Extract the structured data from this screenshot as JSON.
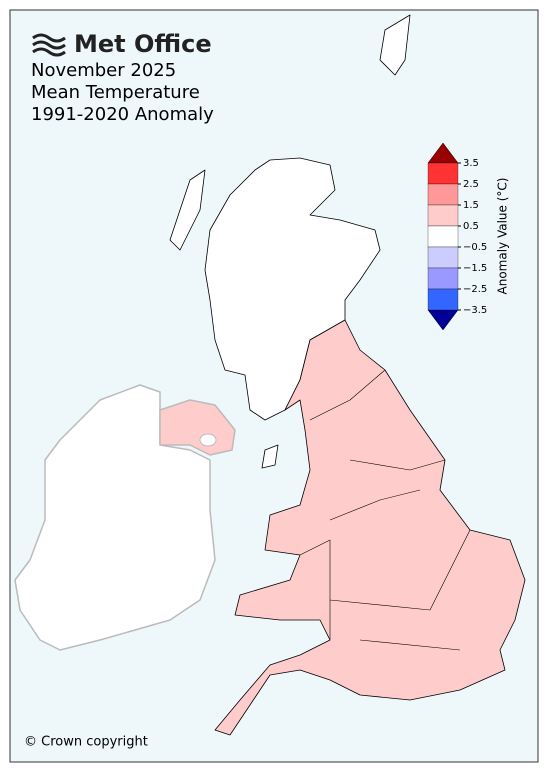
{
  "header": {
    "brand": "Met Office",
    "title": "November 2025",
    "subtitle": "Mean Temperature",
    "period": "1991-2020 Anomaly"
  },
  "colorbar": {
    "label": "Anomaly Value (°C)",
    "ticks": [
      3.5,
      2.5,
      1.5,
      0.5,
      {
        "value": -0.5,
        "label": "−0.5"
      },
      {
        "value": -1.5,
        "label": "−1.5"
      },
      {
        "value": -2.5,
        "label": "−2.5"
      },
      {
        "value": -3.5,
        "label": "−3.5"
      }
    ],
    "colors": [
      "#ff3333",
      "#ff9999",
      "#ffcccc",
      "#ffffff",
      "#ccccff",
      "#9999ff",
      "#3366ff"
    ],
    "over_color": "#990000",
    "under_color": "#000099"
  },
  "footer": {
    "copyright": "© Crown copyright"
  }
}
